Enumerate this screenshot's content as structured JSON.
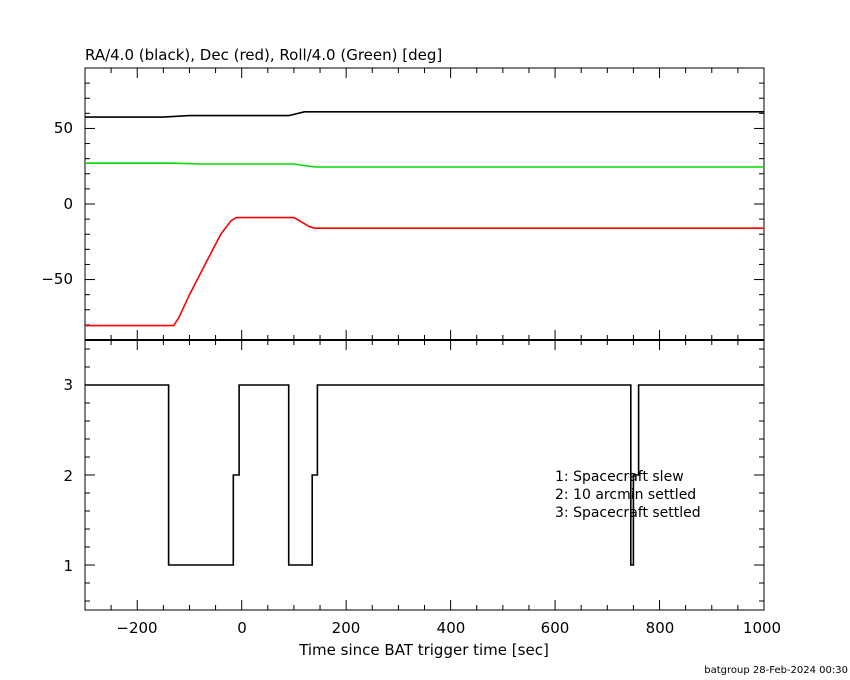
{
  "footer": "batgroup 28-Feb-2024 00:30",
  "chart_data": [
    {
      "type": "line",
      "title": "RA/4.0 (black), Dec (red), Roll/4.0 (Green) [deg]",
      "xlim": [
        -300,
        1000
      ],
      "ylim": [
        -90,
        90
      ],
      "yticks": [
        -50,
        0,
        50
      ],
      "xticks": [
        -200,
        0,
        200,
        400,
        600,
        800,
        1000
      ],
      "colors": {
        "ra": "#000000",
        "dec": "#ff0000",
        "roll": "#00dd00"
      },
      "series": [
        {
          "key": "ra",
          "color": "#000000",
          "x": [
            -300,
            -150,
            -100,
            90,
            120,
            745,
            1000
          ],
          "y": [
            57.5,
            57.5,
            58.5,
            58.5,
            61,
            61,
            61
          ]
        },
        {
          "key": "roll",
          "color": "#00dd00",
          "x": [
            -300,
            -130,
            -80,
            100,
            140,
            1000
          ],
          "y": [
            27,
            27,
            26.5,
            26.5,
            24.5,
            24.5
          ]
        },
        {
          "key": "dec",
          "color": "#ff0000",
          "x": [
            -300,
            -130,
            -120,
            -100,
            -70,
            -40,
            -20,
            -10,
            100,
            130,
            140,
            1000
          ],
          "y": [
            -80.5,
            -80.5,
            -75,
            -60,
            -40,
            -20,
            -11,
            -9,
            -9,
            -15,
            -16,
            -16
          ]
        }
      ]
    },
    {
      "type": "line",
      "xlabel": "Time since BAT trigger time [sec]",
      "xlim": [
        -300,
        1000
      ],
      "ylim": [
        0.5,
        3.5
      ],
      "yticks": [
        1,
        2,
        3
      ],
      "xticks": [
        -200,
        0,
        200,
        400,
        600,
        800,
        1000
      ],
      "xticklabels": [
        "−200",
        "0",
        "200",
        "400",
        "600",
        "800",
        "1000"
      ],
      "series": [
        {
          "key": "status",
          "color": "#000000",
          "x": [
            -300,
            -140,
            -140,
            -16,
            -16,
            -5,
            -5,
            90,
            90,
            135,
            135,
            145,
            145,
            745,
            745,
            750,
            750,
            760,
            760,
            1000
          ],
          "y": [
            3,
            3,
            1,
            1,
            2,
            2,
            3,
            3,
            1,
            1,
            2,
            2,
            3,
            3,
            1,
            1,
            2,
            2,
            3,
            3
          ]
        }
      ],
      "legend": [
        "1: Spacecraft slew",
        "2: 10 arcmin settled",
        "3: Spacecraft settled"
      ]
    }
  ],
  "labels": {
    "top_yticklabels": [
      "−50",
      "0",
      "50"
    ],
    "bottom_yticklabels": [
      "1",
      "2",
      "3"
    ]
  }
}
